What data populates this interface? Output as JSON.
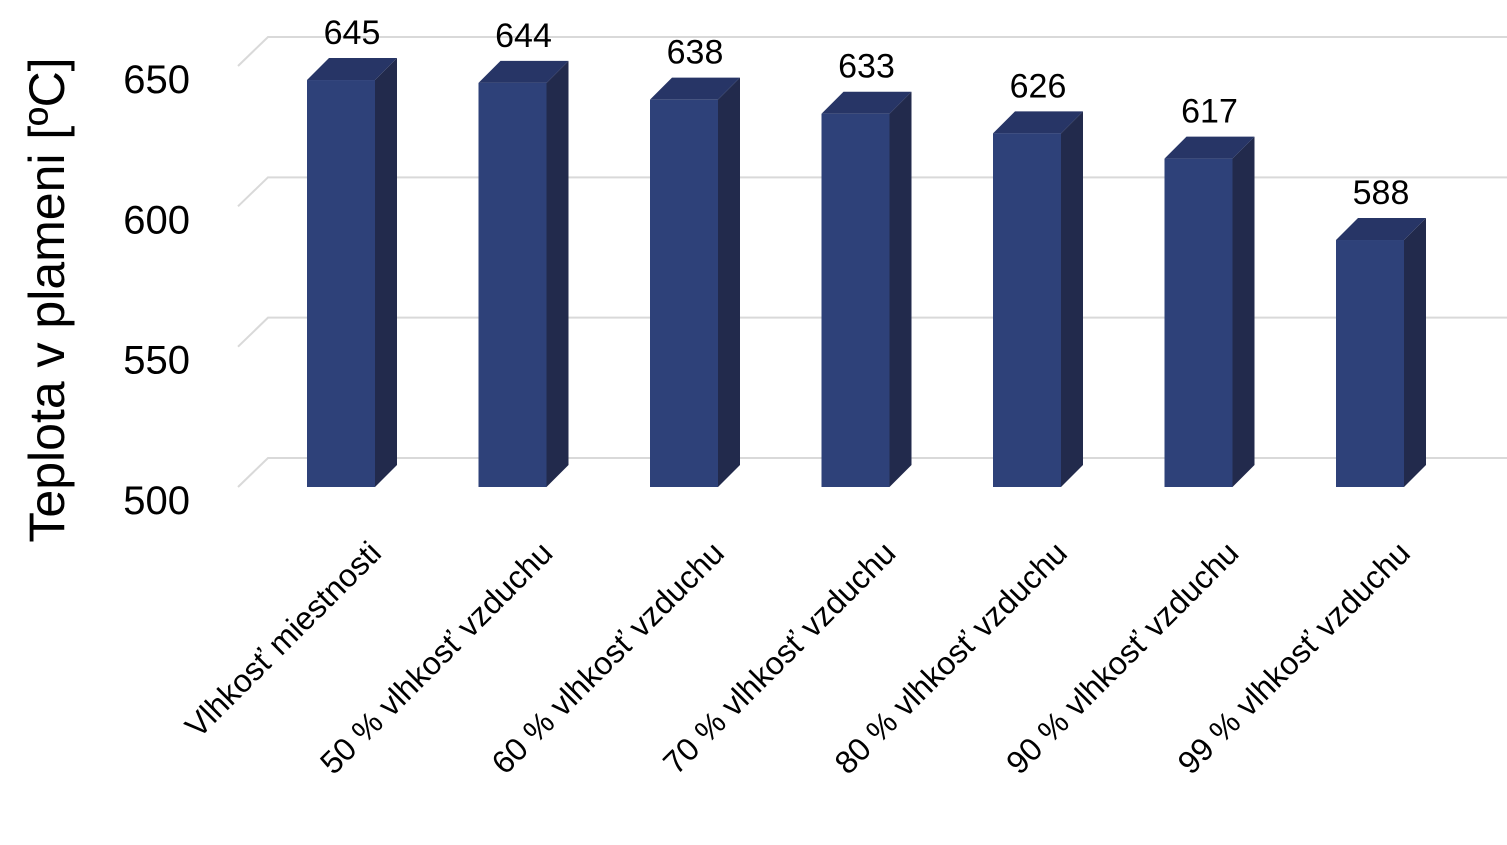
{
  "chart_data": {
    "type": "bar",
    "title": "",
    "xlabel": "",
    "ylabel": "Teplota v plameni [ºC]",
    "ylim": [
      500,
      650
    ],
    "yticks": [
      500,
      550,
      600,
      650
    ],
    "grid": true,
    "style": "3d-column",
    "categories": [
      "Vlhkosť miestnosti",
      "50 % vlhkosť vzduchu",
      "60 % vlhkosť vzduchu",
      "70 % vlhkosť vzduchu",
      "80 % vlhkosť vzduchu",
      "90 % vlhkosť vzduchu",
      "99 % vlhkosť vzduchu"
    ],
    "values": [
      645,
      644,
      638,
      633,
      626,
      617,
      588
    ],
    "data_labels": [
      "645",
      "644",
      "638",
      "633",
      "626",
      "617",
      "588"
    ],
    "colors": {
      "front": "#2e4179",
      "side": "#222a4c",
      "top": "#273566",
      "grid": "#d9d9d9"
    }
  }
}
